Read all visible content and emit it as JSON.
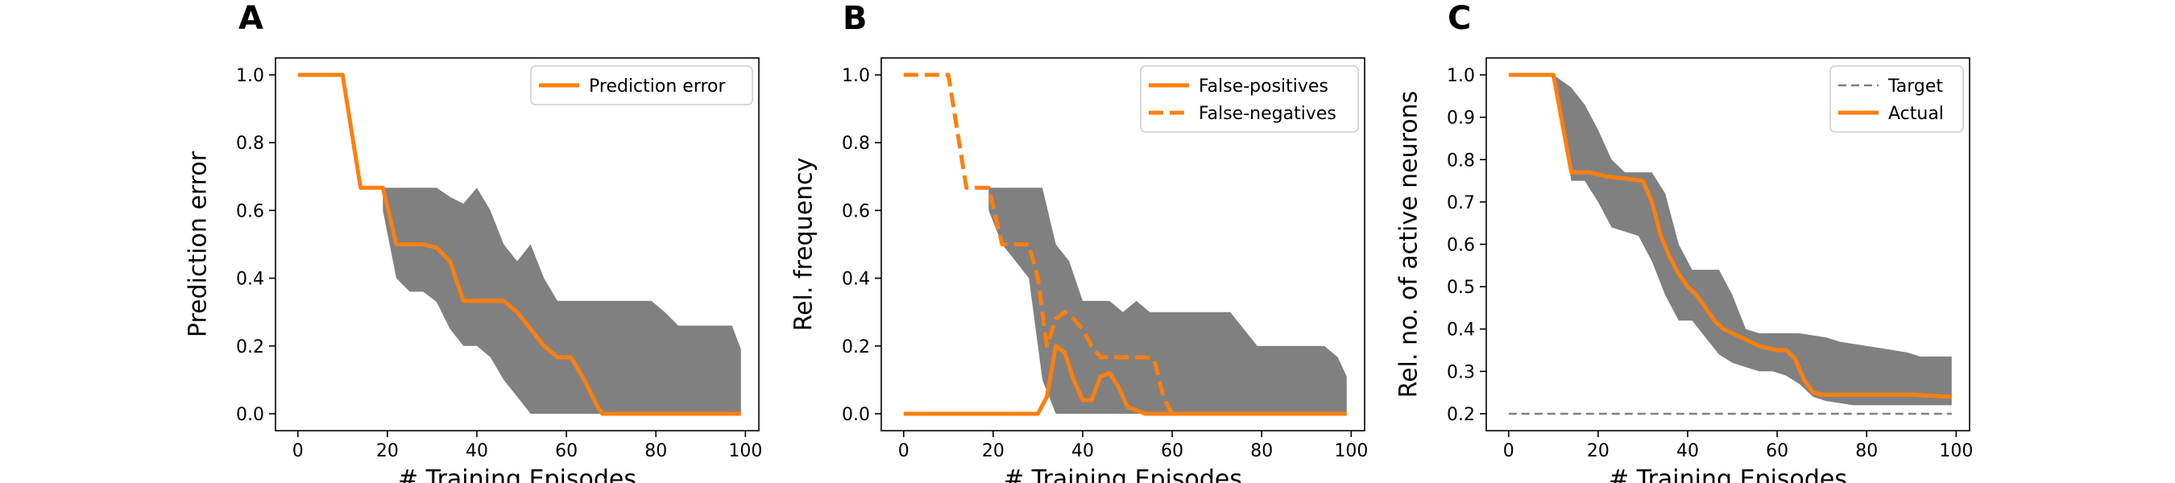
{
  "chart_data": [
    {
      "panel": "A",
      "type": "line",
      "xlabel": "# Training Episodes",
      "ylabel": "Prediction error",
      "xlim": [
        -5,
        103
      ],
      "ylim": [
        -0.05,
        1.05
      ],
      "xticks": [
        0,
        20,
        40,
        60,
        80,
        100
      ],
      "yticks": [
        0.0,
        0.2,
        0.4,
        0.6,
        0.8,
        1.0
      ],
      "ytick_labels": [
        "0.0",
        "0.2",
        "0.4",
        "0.6",
        "0.8",
        "1.0"
      ],
      "legend": "top-right",
      "band": {
        "x": [
          19,
          22,
          25,
          28,
          31,
          34,
          37,
          40,
          43,
          46,
          49,
          52,
          55,
          58,
          61,
          64,
          67,
          70,
          73,
          76,
          79,
          82,
          85,
          88,
          91,
          94,
          97,
          99
        ],
        "upper": [
          0.667,
          0.667,
          0.667,
          0.667,
          0.667,
          0.64,
          0.62,
          0.667,
          0.6,
          0.5,
          0.45,
          0.5,
          0.4,
          0.333,
          0.333,
          0.333,
          0.333,
          0.333,
          0.333,
          0.333,
          0.333,
          0.3,
          0.26,
          0.26,
          0.26,
          0.26,
          0.26,
          0.19
        ],
        "lower": [
          0.6,
          0.4,
          0.36,
          0.36,
          0.33,
          0.25,
          0.2,
          0.2,
          0.167,
          0.1,
          0.05,
          0.0,
          0.0,
          0.0,
          0.0,
          0.0,
          0.0,
          0.0,
          0.0,
          0.0,
          0.0,
          0.0,
          0.0,
          0.0,
          0.0,
          0.0,
          0.0,
          0.0
        ]
      },
      "series": [
        {
          "name": "Prediction error",
          "style": "solid",
          "x": [
            0,
            10,
            14,
            19,
            22,
            25,
            28,
            31,
            34,
            37,
            40,
            43,
            46,
            49,
            52,
            55,
            58,
            61,
            64,
            67,
            68,
            70,
            80,
            90,
            99
          ],
          "y": [
            1.0,
            1.0,
            0.667,
            0.667,
            0.5,
            0.5,
            0.5,
            0.49,
            0.45,
            0.333,
            0.333,
            0.333,
            0.333,
            0.3,
            0.25,
            0.2,
            0.167,
            0.167,
            0.1,
            0.02,
            0.0,
            0.0,
            0.0,
            0.0,
            0.0
          ]
        }
      ]
    },
    {
      "panel": "B",
      "type": "line",
      "xlabel": "# Training Episodes",
      "ylabel": "Rel. frequency",
      "xlim": [
        -5,
        103
      ],
      "ylim": [
        -0.05,
        1.05
      ],
      "xticks": [
        0,
        20,
        40,
        60,
        80,
        100
      ],
      "yticks": [
        0.0,
        0.2,
        0.4,
        0.6,
        0.8,
        1.0
      ],
      "ytick_labels": [
        "0.0",
        "0.2",
        "0.4",
        "0.6",
        "0.8",
        "1.0"
      ],
      "legend": "top-right",
      "band": {
        "x": [
          19,
          22,
          25,
          28,
          31,
          34,
          37,
          40,
          43,
          46,
          49,
          52,
          55,
          58,
          61,
          64,
          67,
          70,
          73,
          76,
          79,
          82,
          85,
          88,
          91,
          94,
          97,
          99
        ],
        "upper": [
          0.667,
          0.667,
          0.667,
          0.667,
          0.667,
          0.5,
          0.45,
          0.333,
          0.333,
          0.333,
          0.3,
          0.333,
          0.3,
          0.3,
          0.3,
          0.3,
          0.3,
          0.3,
          0.3,
          0.25,
          0.2,
          0.2,
          0.2,
          0.2,
          0.2,
          0.2,
          0.167,
          0.11
        ],
        "lower": [
          0.6,
          0.5,
          0.45,
          0.4,
          0.1,
          0.0,
          0.0,
          0.0,
          0.0,
          0.0,
          0.0,
          0.0,
          0.0,
          0.0,
          0.0,
          0.0,
          0.0,
          0.0,
          0.0,
          0.0,
          0.0,
          0.0,
          0.0,
          0.0,
          0.0,
          0.0,
          0.0,
          0.0
        ]
      },
      "series": [
        {
          "name": "False-positives",
          "style": "solid",
          "x": [
            0,
            10,
            20,
            30,
            32,
            34,
            36,
            38,
            40,
            42,
            44,
            46,
            48,
            50,
            52,
            54,
            56,
            60,
            70,
            80,
            90,
            99
          ],
          "y": [
            0.0,
            0.0,
            0.0,
            0.0,
            0.05,
            0.2,
            0.18,
            0.1,
            0.04,
            0.04,
            0.11,
            0.12,
            0.08,
            0.02,
            0.01,
            0.0,
            0.0,
            0.0,
            0.0,
            0.0,
            0.0,
            0.0
          ]
        },
        {
          "name": "False-negatives",
          "style": "dashed",
          "x": [
            0,
            10,
            14,
            19,
            22,
            25,
            28,
            30,
            32,
            34,
            36,
            38,
            40,
            42,
            44,
            46,
            48,
            50,
            52,
            54,
            56,
            58,
            60
          ],
          "y": [
            1.0,
            1.0,
            0.667,
            0.667,
            0.5,
            0.5,
            0.5,
            0.4,
            0.2,
            0.28,
            0.3,
            0.28,
            0.25,
            0.2,
            0.167,
            0.167,
            0.167,
            0.167,
            0.167,
            0.167,
            0.16,
            0.05,
            0.0
          ]
        }
      ]
    },
    {
      "panel": "C",
      "type": "line",
      "xlabel": "# Training Episodes",
      "ylabel": "Rel. no. of active neurons",
      "xlim": [
        -5,
        103
      ],
      "ylim": [
        0.16,
        1.04
      ],
      "xticks": [
        0,
        20,
        40,
        60,
        80,
        100
      ],
      "yticks": [
        0.2,
        0.3,
        0.4,
        0.5,
        0.6,
        0.7,
        0.8,
        0.9,
        1.0
      ],
      "ytick_labels": [
        "0.2",
        "0.3",
        "0.4",
        "0.5",
        "0.6",
        "0.7",
        "0.8",
        "0.9",
        "1.0"
      ],
      "legend": "top-right",
      "band": {
        "x": [
          0,
          10,
          14,
          17,
          20,
          23,
          26,
          29,
          32,
          35,
          38,
          41,
          44,
          47,
          50,
          53,
          56,
          59,
          62,
          65,
          68,
          71,
          74,
          77,
          80,
          83,
          86,
          89,
          92,
          95,
          99
        ],
        "upper": [
          1.0,
          1.0,
          0.97,
          0.93,
          0.87,
          0.8,
          0.77,
          0.77,
          0.77,
          0.72,
          0.6,
          0.54,
          0.54,
          0.54,
          0.48,
          0.4,
          0.39,
          0.39,
          0.39,
          0.39,
          0.385,
          0.38,
          0.37,
          0.365,
          0.36,
          0.355,
          0.35,
          0.345,
          0.335,
          0.335,
          0.335
        ],
        "lower": [
          1.0,
          1.0,
          0.75,
          0.75,
          0.7,
          0.64,
          0.63,
          0.62,
          0.56,
          0.48,
          0.42,
          0.42,
          0.38,
          0.34,
          0.32,
          0.31,
          0.3,
          0.3,
          0.29,
          0.27,
          0.24,
          0.23,
          0.225,
          0.22,
          0.22,
          0.22,
          0.22,
          0.22,
          0.22,
          0.22,
          0.22
        ]
      },
      "series": [
        {
          "name": "Target",
          "style": "dashed-gray",
          "x": [
            0,
            99
          ],
          "y": [
            0.2,
            0.2
          ]
        },
        {
          "name": "Actual",
          "style": "solid",
          "x": [
            0,
            10,
            14,
            18,
            22,
            26,
            30,
            32,
            34,
            36,
            38,
            40,
            42,
            44,
            46,
            48,
            50,
            52,
            54,
            56,
            58,
            60,
            62,
            64,
            66,
            68,
            70,
            80,
            90,
            99
          ],
          "y": [
            1.0,
            1.0,
            0.77,
            0.77,
            0.76,
            0.755,
            0.75,
            0.7,
            0.62,
            0.57,
            0.53,
            0.5,
            0.48,
            0.45,
            0.42,
            0.4,
            0.39,
            0.38,
            0.37,
            0.36,
            0.355,
            0.35,
            0.35,
            0.33,
            0.28,
            0.25,
            0.245,
            0.245,
            0.245,
            0.24
          ]
        }
      ]
    }
  ],
  "tick_x_labels": [
    "0",
    "20",
    "40",
    "60",
    "80",
    "100"
  ]
}
